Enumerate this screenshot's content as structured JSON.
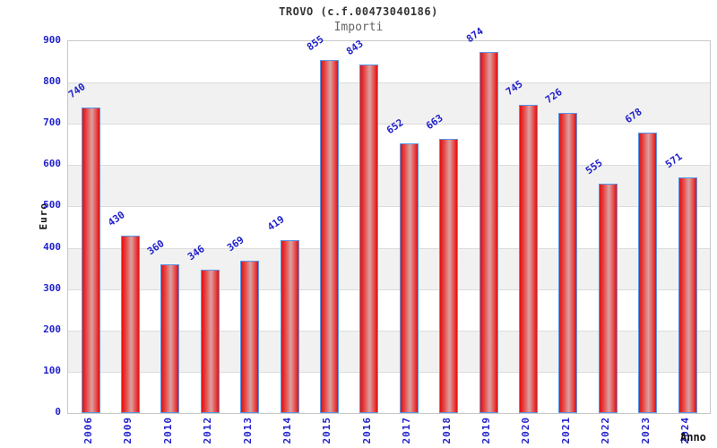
{
  "title": "TROVO (c.f.00473040186)",
  "subtitle": "Importi",
  "chart_data": {
    "type": "bar",
    "title": "TROVO (c.f.00473040186)",
    "subtitle": "Importi",
    "xlabel": "Anno",
    "ylabel": "Euro",
    "categories": [
      "2006",
      "2009",
      "2010",
      "2012",
      "2013",
      "2014",
      "2015",
      "2016",
      "2017",
      "2018",
      "2019",
      "2020",
      "2021",
      "2022",
      "2023",
      "2024"
    ],
    "values": [
      740,
      430,
      360,
      346,
      369,
      419,
      855,
      843,
      652,
      663,
      874,
      745,
      726,
      555,
      678,
      571
    ],
    "ylim": [
      0,
      900
    ],
    "ytick_step": 100,
    "grid": "horizontal",
    "background_bands": "alternating white / light gray per 100",
    "legend": "none",
    "bar_labels": "values shown above bars, rotated"
  },
  "colors": {
    "bar_edge": "#dd1111",
    "bar_center_highlight": "#d9a2a2",
    "bar_border": "#5b97e6",
    "label_blue": "#2222cc",
    "title_text": "#333333",
    "subtitle_text": "#666666",
    "axis_title_text": "#111111",
    "band_gray": "#f1f1f1",
    "grid_line": "#dcdcdc",
    "plot_border": "#c8c8c8",
    "background": "#ffffff"
  }
}
